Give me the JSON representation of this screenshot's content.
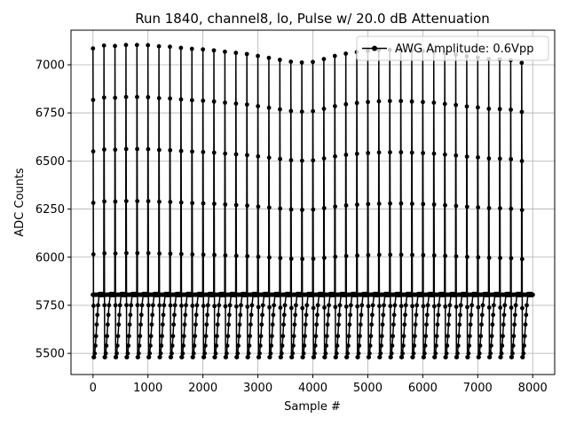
{
  "chart_data": {
    "type": "line",
    "title": "Run 1840, channel8, lo, Pulse w/ 20.0 dB Attenuation",
    "xlabel": "Sample #",
    "ylabel": "ADC Counts",
    "xlim": [
      -400,
      8400
    ],
    "ylim": [
      5390,
      7180
    ],
    "xticks": [
      0,
      1000,
      2000,
      3000,
      4000,
      5000,
      6000,
      7000,
      8000
    ],
    "yticks": [
      5500,
      5750,
      6000,
      6250,
      6500,
      6750,
      7000
    ],
    "grid": true,
    "legend_position": "top-right",
    "series": [
      {
        "name": "AWG Amplitude: 0.6Vpp",
        "color": "#000000",
        "marker": "circle",
        "pulse_period": 200,
        "pulse_count": 40,
        "baseline": 5805,
        "pulse_peaks_start_x": 0,
        "pulse_peaks": [
          7085,
          7100,
          7098,
          7103,
          7103,
          7102,
          7096,
          7094,
          7088,
          7083,
          7080,
          7075,
          7068,
          7062,
          7056,
          7046,
          7036,
          7026,
          7016,
          7012,
          7015,
          7030,
          7046,
          7058,
          7066,
          7072,
          7076,
          7078,
          7078,
          7075,
          7072,
          7068,
          7060,
          7053,
          7044,
          7038,
          7030,
          7028,
          7024,
          7010
        ],
        "undershoot_levels": [
          5480,
          5500,
          5540,
          5590,
          5650,
          5700,
          5750
        ]
      }
    ]
  }
}
